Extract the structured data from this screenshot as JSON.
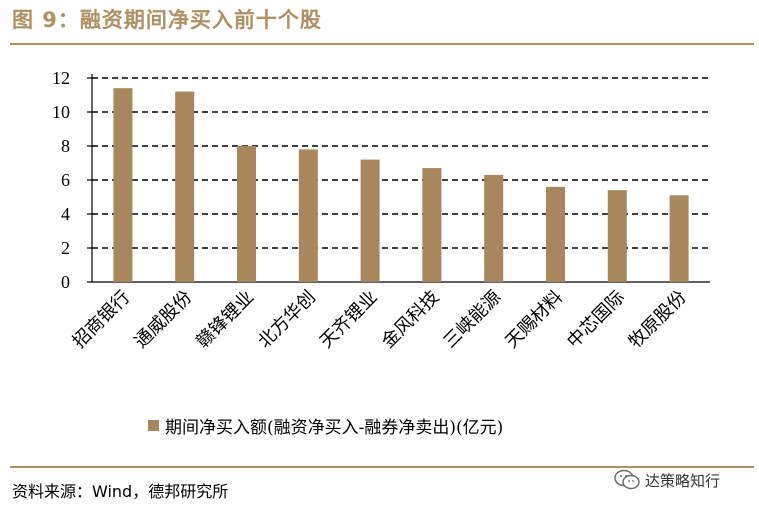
{
  "figure": {
    "title": "图 9：融资期间净买入前十个股",
    "source": "资料来源：Wind，德邦研究所",
    "watermark": "达策略知行"
  },
  "colors": {
    "accent": "#b08f60",
    "bar": "#a8875c"
  },
  "chart_data": {
    "type": "bar",
    "categories": [
      "招商银行",
      "通威股份",
      "赣锋锂业",
      "北方华创",
      "天齐锂业",
      "金风科技",
      "三峡能源",
      "天赐材料",
      "中芯国际",
      "牧原股份"
    ],
    "series": [
      {
        "name": "期间净买入额(融资净买入-融券净卖出)(亿元)",
        "values": [
          11.4,
          11.2,
          8.0,
          7.8,
          7.2,
          6.7,
          6.3,
          5.6,
          5.4,
          5.1
        ]
      }
    ],
    "yticks": [
      "0",
      "2",
      "4",
      "6",
      "8",
      "10",
      "12"
    ],
    "ylim": [
      0,
      12
    ],
    "grid": true,
    "legend_position": "bottom"
  }
}
